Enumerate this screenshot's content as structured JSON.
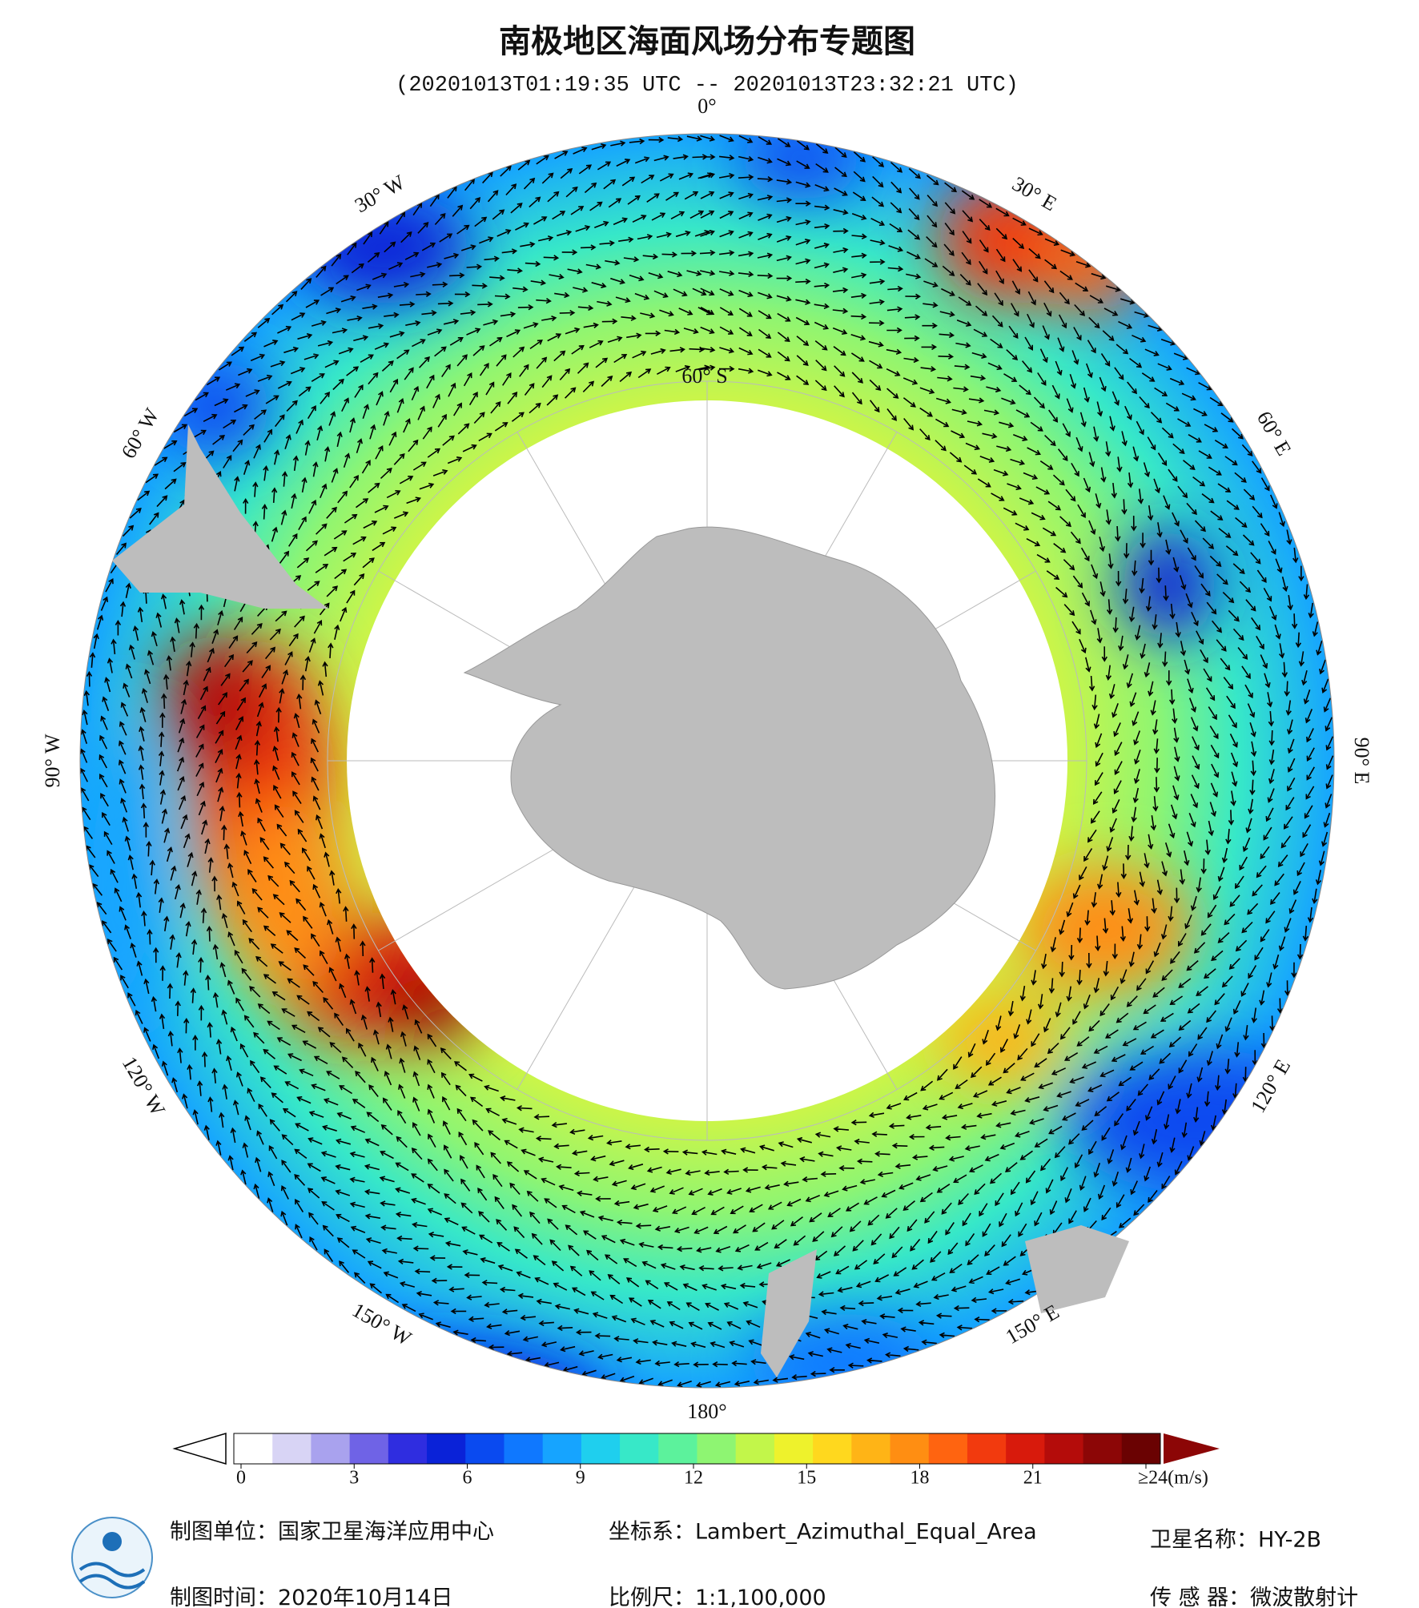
{
  "header": {
    "title": "南极地区海面风场分布专题图",
    "subtitle": "(20201013T01:19:35 UTC -- 20201013T23:32:21 UTC)"
  },
  "map": {
    "longitude_labels": [
      "0°",
      "30° E",
      "60° E",
      "90° E",
      "120° E",
      "150° E",
      "180°",
      "150° W",
      "120° W",
      "90° W",
      "60° W",
      "30° W"
    ],
    "latitude_label": "60° S"
  },
  "colorbar": {
    "clim": [
      0,
      24
    ],
    "colors": [
      "#ffffff",
      "#d8d4f5",
      "#a9a2ee",
      "#6f63e6",
      "#2f2de0",
      "#0a22d8",
      "#0a4af0",
      "#0f78ff",
      "#16a4ff",
      "#1fcfee",
      "#37e8c8",
      "#5cf29c",
      "#8ef572",
      "#c2f64a",
      "#eef22c",
      "#ffd81e",
      "#ffb416",
      "#ff8e12",
      "#ff6410",
      "#f23a0e",
      "#d81a0c",
      "#b40c0a",
      "#8c0606",
      "#6a0202"
    ],
    "ticks": [
      0,
      3,
      6,
      9,
      12,
      15,
      18,
      21,
      {
        "value": 24,
        "label": "≥24(m/s)"
      }
    ]
  },
  "footer": {
    "left": [
      "制图单位：国家卫星海洋应用中心",
      "制图时间：2020年10月14日"
    ],
    "middle": [
      "坐标系：Lambert_Azimuthal_Equal_Area",
      "比例尺：1:1,100,000"
    ],
    "right": [
      "卫星名称：HY-2B",
      "传 感 器：微波散射计"
    ]
  }
}
